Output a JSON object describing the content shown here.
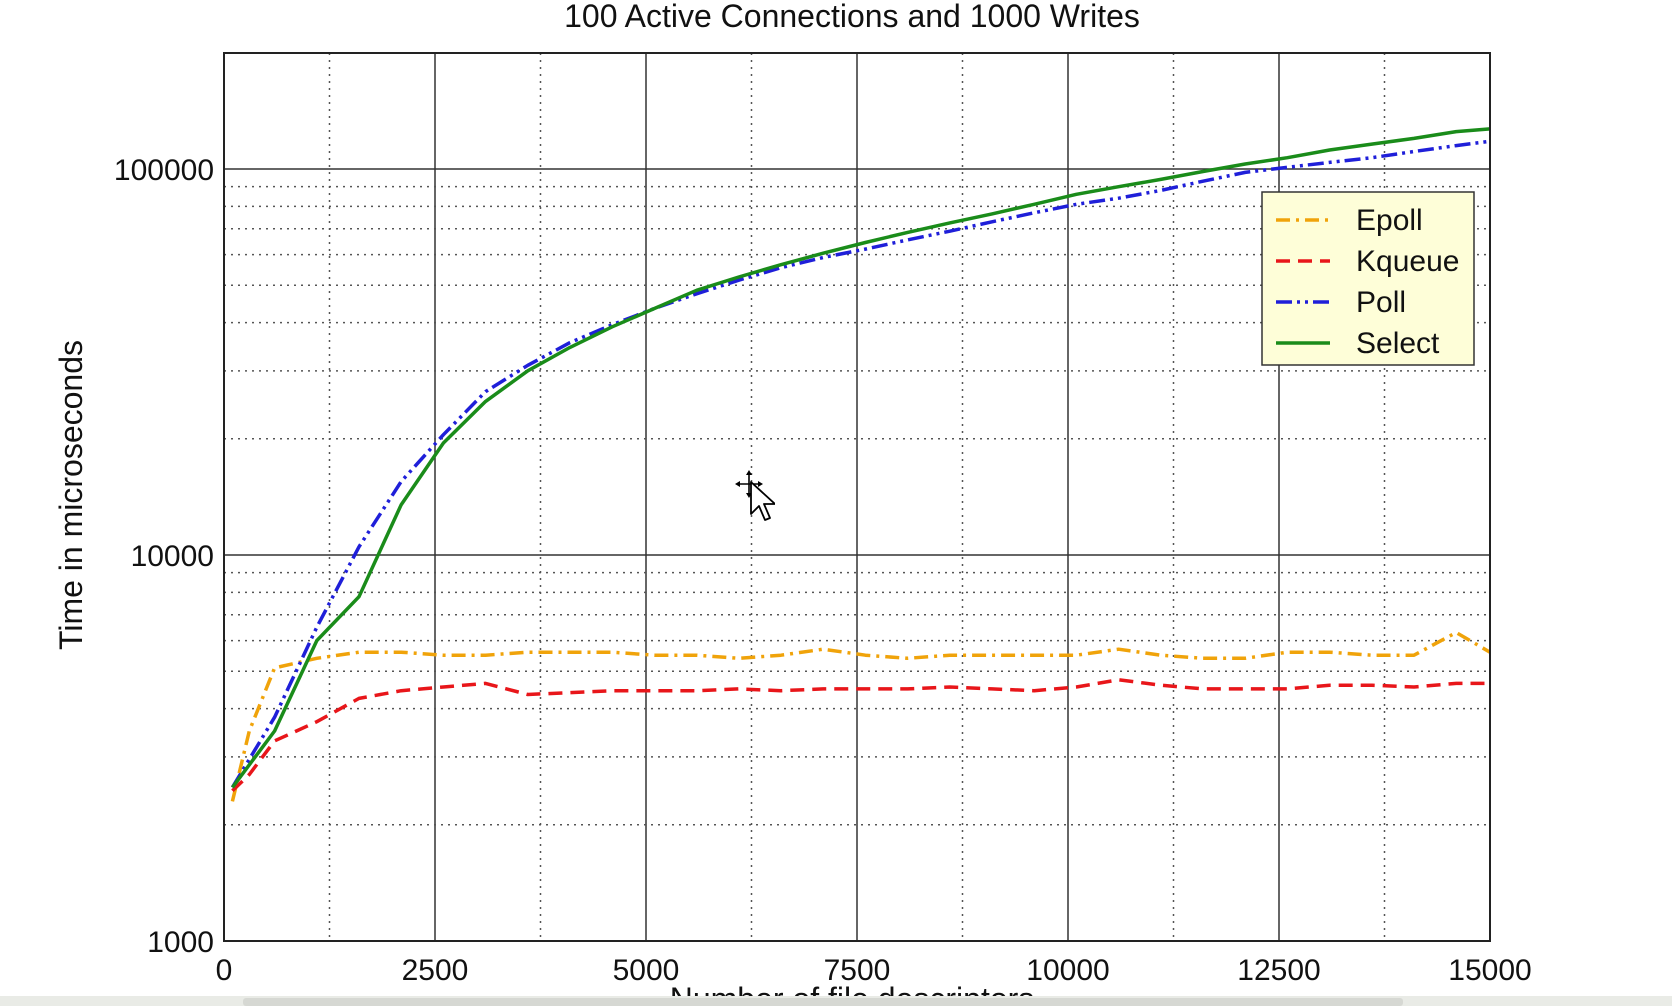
{
  "chart_data": {
    "type": "line",
    "title": "100 Active Connections and 1000 Writes",
    "xlabel": "Number of file descriptors",
    "ylabel": "Time in microseconds",
    "x_scale": "linear",
    "y_scale": "log",
    "xlim": [
      0,
      15000
    ],
    "ylim": [
      1000,
      200000
    ],
    "x_ticks": [
      "0",
      "2500",
      "5000",
      "7500",
      "10000",
      "12500",
      "15000"
    ],
    "x_tick_values": [
      0,
      2500,
      5000,
      7500,
      10000,
      12500,
      15000
    ],
    "y_ticks": [
      "1000",
      "10000",
      "100000"
    ],
    "y_tick_values": [
      1000,
      10000,
      100000
    ],
    "grid": true,
    "legend_position": "upper-right",
    "series": [
      {
        "name": "Epoll",
        "color": "#f0a30a",
        "dash": "dashdot",
        "x": [
          100,
          300,
          600,
          1100,
          1600,
          2100,
          2600,
          3100,
          3600,
          4100,
          4600,
          5100,
          5600,
          6100,
          6600,
          7100,
          7600,
          8100,
          8600,
          9100,
          9600,
          10100,
          10600,
          11100,
          11600,
          12100,
          12600,
          13100,
          13600,
          14100,
          14600,
          15000
        ],
        "y": [
          2300,
          3500,
          5100,
          5400,
          5600,
          5600,
          5500,
          5500,
          5600,
          5600,
          5600,
          5500,
          5500,
          5400,
          5500,
          5700,
          5500,
          5400,
          5500,
          5500,
          5500,
          5500,
          5700,
          5500,
          5400,
          5400,
          5600,
          5600,
          5500,
          5500,
          6300,
          5600
        ]
      },
      {
        "name": "Kqueue",
        "color": "#e8161a",
        "dash": "dashed",
        "x": [
          100,
          300,
          600,
          1100,
          1600,
          2100,
          2600,
          3100,
          3600,
          4100,
          4600,
          5100,
          5600,
          6100,
          6600,
          7100,
          7600,
          8100,
          8600,
          9100,
          9600,
          10100,
          10600,
          11100,
          11600,
          12100,
          12600,
          13100,
          13600,
          14100,
          14600,
          15000
        ],
        "y": [
          2450,
          2700,
          3300,
          3700,
          4250,
          4450,
          4550,
          4650,
          4350,
          4400,
          4450,
          4450,
          4450,
          4500,
          4450,
          4500,
          4500,
          4500,
          4550,
          4500,
          4450,
          4550,
          4750,
          4600,
          4500,
          4500,
          4500,
          4600,
          4600,
          4550,
          4650,
          4650
        ]
      },
      {
        "name": "Poll",
        "color": "#1f1fd9",
        "dash": "dashdotdot",
        "x": [
          100,
          600,
          1100,
          1600,
          2100,
          2600,
          3100,
          3600,
          4100,
          4600,
          5100,
          5600,
          6100,
          6600,
          7100,
          7600,
          8100,
          8600,
          9100,
          9600,
          10100,
          10600,
          11100,
          11600,
          12100,
          12600,
          13100,
          13600,
          14100,
          14600,
          15000
        ],
        "y": [
          2500,
          3800,
          6500,
          10500,
          15500,
          20500,
          26500,
          31000,
          35500,
          39500,
          43500,
          47500,
          51500,
          55500,
          59000,
          62000,
          65500,
          69000,
          73000,
          77000,
          81000,
          84000,
          88000,
          93000,
          98000,
          101000,
          104000,
          107000,
          111000,
          115000,
          118000
        ]
      },
      {
        "name": "Select",
        "color": "#1a8c1a",
        "dash": "solid",
        "x": [
          100,
          600,
          1100,
          1600,
          2100,
          2600,
          3100,
          3600,
          4100,
          4600,
          5100,
          5600,
          6100,
          6600,
          7100,
          7600,
          8100,
          8600,
          9100,
          9600,
          10100,
          10600,
          11100,
          11600,
          12100,
          12600,
          13100,
          13600,
          14100,
          14600,
          15000
        ],
        "y": [
          2500,
          3500,
          6000,
          7800,
          13500,
          19500,
          25000,
          30000,
          34500,
          39000,
          43500,
          48500,
          52500,
          56500,
          60500,
          64500,
          68500,
          72500,
          76500,
          81000,
          86000,
          90000,
          94000,
          98500,
          103000,
          107000,
          112000,
          116000,
          120000,
          125000,
          127000
        ]
      }
    ]
  }
}
